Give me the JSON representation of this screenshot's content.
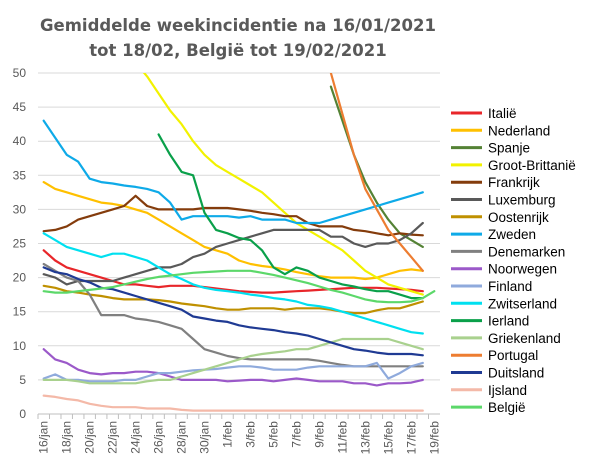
{
  "chart_data": {
    "type": "line",
    "title": [
      "Gemiddelde weekincidentie  na 16/01/2021",
      "tot 18/02, België tot 19/02/2021"
    ],
    "xlabel": "",
    "ylabel": "",
    "ylim": [
      0,
      50
    ],
    "yticks": [
      0,
      5,
      10,
      15,
      20,
      25,
      30,
      35,
      40,
      45,
      50
    ],
    "grid": "horizontal",
    "legend_position": "right",
    "categories": [
      "16/jan",
      "17/jan",
      "18/jan",
      "19/jan",
      "20/jan",
      "21/jan",
      "22/jan",
      "23/jan",
      "24/jan",
      "25/jan",
      "26/jan",
      "27/jan",
      "28/jan",
      "29/jan",
      "30/jan",
      "31/jan",
      "1/feb",
      "2/feb",
      "3/feb",
      "4/feb",
      "5/feb",
      "6/feb",
      "7/feb",
      "8/feb",
      "9/feb",
      "10/feb",
      "11/feb",
      "12/feb",
      "13/feb",
      "14/feb",
      "15/feb",
      "16/feb",
      "17/feb",
      "18/feb",
      "19/feb"
    ],
    "x_tick_labels": [
      "16/jan",
      "18/jan",
      "20/jan",
      "22/jan",
      "24/jan",
      "26/jan",
      "28/jan",
      "30/jan",
      "1/feb",
      "3/feb",
      "5/feb",
      "7/feb",
      "9/feb",
      "11/feb",
      "13/feb",
      "15/feb",
      "17/feb",
      "19/feb"
    ],
    "series": [
      {
        "name": "Italië",
        "color": "#e8262a",
        "values": [
          24,
          22.5,
          21.5,
          21,
          20.5,
          20,
          19.5,
          19,
          19,
          18.8,
          18.6,
          18.8,
          18.8,
          18.8,
          18.6,
          18.4,
          18.2,
          18,
          17.9,
          17.8,
          17.8,
          17.9,
          18,
          18.1,
          18.2,
          18.3,
          18.4,
          18.5,
          18.5,
          18.5,
          18.4,
          18.3,
          18.2,
          18,
          null
        ]
      },
      {
        "name": "Nederland",
        "color": "#ffc000",
        "values": [
          34,
          33,
          32.5,
          32,
          31.5,
          31,
          30.8,
          30.5,
          30,
          29.5,
          28.5,
          27.5,
          26.5,
          25.5,
          24.5,
          24,
          23.5,
          22.5,
          22,
          21.7,
          21.5,
          21.2,
          20.8,
          20.5,
          20.2,
          20,
          20,
          20,
          19.8,
          20,
          20.5,
          21,
          21.2,
          21,
          null
        ]
      },
      {
        "name": "Spanje",
        "color": "#548235",
        "values": [
          null,
          null,
          null,
          null,
          null,
          null,
          null,
          null,
          null,
          null,
          null,
          null,
          null,
          null,
          null,
          null,
          null,
          null,
          null,
          null,
          null,
          null,
          null,
          null,
          null,
          48,
          43,
          38,
          34,
          31,
          28.5,
          26.5,
          25.5,
          24.5,
          null
        ]
      },
      {
        "name": "Groot-Brittanië",
        "color": "#f2f200",
        "values": [
          null,
          null,
          null,
          null,
          null,
          null,
          null,
          null,
          51.5,
          49.5,
          47,
          44.5,
          42.5,
          40,
          38,
          36.5,
          35.5,
          34.5,
          33.5,
          32.5,
          31,
          29.5,
          28,
          27,
          26,
          25,
          24,
          22.5,
          21,
          20,
          19,
          18.5,
          18,
          17.5,
          null
        ]
      },
      {
        "name": "Frankrijk",
        "color": "#843c0c",
        "values": [
          26.8,
          27,
          27.5,
          28.5,
          29,
          29.5,
          30,
          30.5,
          32,
          30.5,
          30,
          30,
          30,
          30,
          30.2,
          30.2,
          30.2,
          30,
          29.8,
          29.5,
          29.3,
          29,
          29,
          28,
          27.5,
          27.5,
          27.5,
          27,
          26.8,
          26.5,
          26.2,
          26.5,
          26.3,
          26.2,
          null
        ]
      },
      {
        "name": "Luxemburg",
        "color": "#595959",
        "values": [
          20.5,
          20,
          19,
          19.5,
          19.5,
          19.5,
          19.5,
          20,
          20.5,
          21,
          21.5,
          21.5,
          22,
          23,
          23.5,
          24.5,
          25,
          25.5,
          26,
          26.5,
          27,
          27,
          27,
          27,
          27,
          26,
          26,
          25,
          24.5,
          25,
          25,
          25.5,
          26.5,
          28,
          null
        ]
      },
      {
        "name": "Oostenrijk",
        "color": "#bf9000",
        "values": [
          18.8,
          18.5,
          18,
          17.8,
          17.5,
          17.3,
          17,
          16.8,
          16.8,
          16.8,
          16.7,
          16.5,
          16.2,
          16,
          15.8,
          15.5,
          15.3,
          15.3,
          15.5,
          15.5,
          15.5,
          15.3,
          15.5,
          15.5,
          15.5,
          15.3,
          15,
          14.8,
          14.8,
          15.2,
          15.5,
          15.5,
          16,
          16.5,
          null
        ]
      },
      {
        "name": "Zweden",
        "color": "#0eaae8",
        "values": [
          43,
          40.5,
          38,
          37,
          34.5,
          34,
          33.8,
          33.5,
          33.3,
          33,
          32.5,
          31,
          28.5,
          29,
          29,
          29,
          29,
          28.8,
          29,
          28.5,
          28.5,
          28.5,
          28,
          28,
          28,
          28.5,
          29,
          29.5,
          30,
          30.5,
          31,
          31.5,
          32,
          32.5,
          null
        ]
      },
      {
        "name": "Denemarken",
        "color": "#808080",
        "values": [
          22,
          21,
          20,
          19.5,
          17.5,
          14.5,
          14.5,
          14.5,
          14,
          13.8,
          13.5,
          13,
          12.5,
          11,
          9.5,
          9,
          8.5,
          8.2,
          8,
          8,
          8,
          8,
          8,
          8,
          7.8,
          7.5,
          7.2,
          7,
          7,
          7,
          7,
          7,
          7,
          7,
          null
        ]
      },
      {
        "name": "Noorwegen",
        "color": "#9b59c9",
        "values": [
          9.5,
          8,
          7.5,
          6.5,
          6,
          5.8,
          6,
          6,
          6.2,
          6.2,
          6,
          5.5,
          5,
          5,
          5,
          5,
          4.8,
          4.9,
          5,
          5,
          4.8,
          5,
          5.2,
          5,
          4.8,
          4.8,
          4.8,
          4.5,
          4.5,
          4.2,
          4.5,
          4.5,
          4.6,
          5,
          null
        ]
      },
      {
        "name": "Finland",
        "color": "#8faadc",
        "values": [
          5.2,
          5.8,
          5,
          5,
          4.8,
          4.8,
          4.8,
          5,
          5,
          5.5,
          6,
          6,
          6.2,
          6.4,
          6.5,
          6.6,
          6.8,
          7,
          7,
          6.8,
          6.5,
          6.5,
          6.5,
          6.8,
          7,
          7,
          7,
          7,
          7,
          7.5,
          5.2,
          6,
          7,
          7.5,
          null
        ]
      },
      {
        "name": "Zwitserland",
        "color": "#00e0f0",
        "values": [
          26.5,
          25.5,
          24.5,
          24,
          23.5,
          23,
          23.5,
          23.5,
          23,
          22.5,
          21.5,
          20.5,
          19.8,
          19,
          18.5,
          18.2,
          18,
          17.8,
          17.5,
          17.3,
          17,
          16.8,
          16.5,
          16,
          15.8,
          15.5,
          15,
          14.5,
          14,
          13.5,
          13,
          12.5,
          12,
          11.8,
          null
        ]
      },
      {
        "name": "Ierland",
        "color": "#0aa04a",
        "values": [
          null,
          null,
          null,
          null,
          null,
          null,
          null,
          null,
          null,
          null,
          41,
          38,
          35.5,
          35,
          29.5,
          27,
          26.5,
          25.8,
          25.5,
          24,
          21.5,
          20.5,
          21.5,
          21,
          20,
          19.5,
          19,
          18.7,
          18.3,
          18,
          18,
          17.5,
          17,
          17,
          null
        ]
      },
      {
        "name": "Griekenland",
        "color": "#a9d18e",
        "values": [
          5,
          5,
          5,
          4.8,
          4.5,
          4.5,
          4.5,
          4.5,
          4.5,
          4.8,
          5,
          5,
          5.5,
          6,
          6.5,
          7,
          7.5,
          8,
          8.5,
          8.8,
          9,
          9.2,
          9.5,
          9.5,
          10,
          10.5,
          11,
          11,
          11,
          11,
          11,
          10.5,
          10,
          9.5,
          null
        ]
      },
      {
        "name": "Portugal",
        "color": "#ed7d31",
        "values": [
          null,
          null,
          null,
          null,
          null,
          null,
          null,
          null,
          null,
          null,
          null,
          null,
          null,
          null,
          null,
          null,
          null,
          null,
          null,
          null,
          null,
          null,
          null,
          null,
          null,
          50,
          44,
          38,
          33,
          30,
          27,
          25,
          23,
          21,
          null
        ]
      },
      {
        "name": "Duitsland",
        "color": "#1f3a93",
        "values": [
          21.5,
          20.8,
          20.5,
          19.8,
          19.3,
          18.5,
          18.3,
          17.8,
          17.3,
          16.8,
          16.3,
          15.8,
          15.3,
          14.3,
          14,
          13.7,
          13.5,
          13,
          12.7,
          12.5,
          12.3,
          12,
          11.8,
          11.5,
          11,
          10.5,
          10,
          9.5,
          9.3,
          9,
          8.8,
          8.8,
          8.8,
          8.6,
          null
        ]
      },
      {
        "name": "Ijsland",
        "color": "#f4b9a8",
        "values": [
          2.7,
          2.5,
          2.2,
          2,
          1.5,
          1.2,
          1,
          1,
          1,
          0.8,
          0.8,
          0.8,
          0.6,
          0.5,
          0.5,
          0.5,
          0.5,
          0.5,
          0.5,
          0.5,
          0.5,
          0.5,
          0.5,
          0.5,
          0.5,
          0.5,
          0.5,
          0.5,
          0.5,
          0.5,
          0.5,
          0.5,
          0.5,
          0.5,
          null
        ]
      },
      {
        "name": "België",
        "color": "#5cd86a",
        "values": [
          18,
          17.8,
          17.8,
          18,
          18.2,
          18.4,
          18.6,
          19,
          19.4,
          19.8,
          20.1,
          20.3,
          20.5,
          20.7,
          20.8,
          20.9,
          21,
          21,
          21,
          20.7,
          20.4,
          20,
          19.6,
          19.2,
          18.7,
          18.2,
          17.8,
          17.3,
          16.8,
          16.5,
          16.4,
          16.4,
          16.5,
          17,
          18
        ]
      }
    ]
  }
}
